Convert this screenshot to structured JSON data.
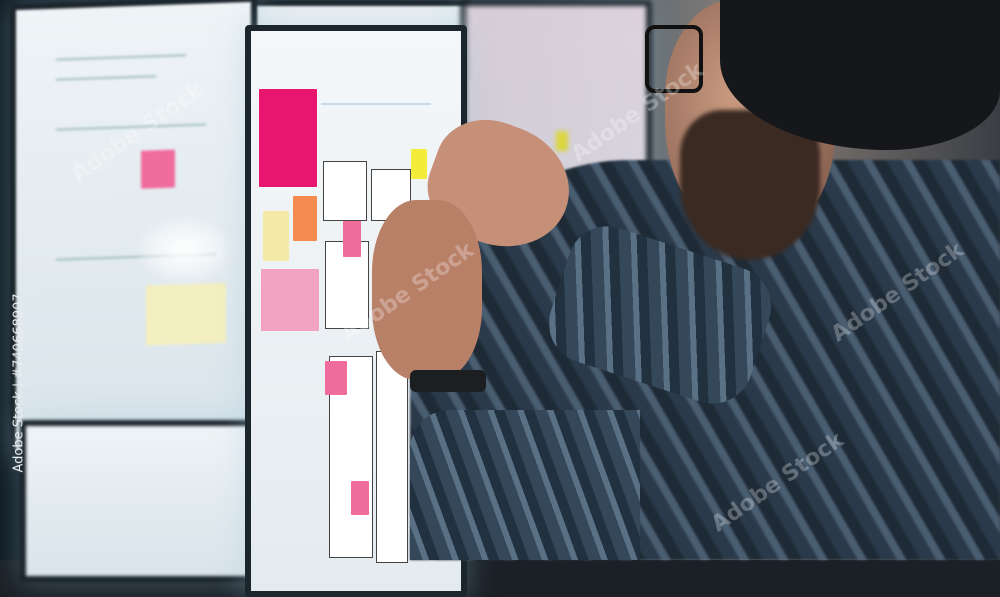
{
  "watermark": "Adobe Stock",
  "credit": "Adobe Stock | #740668907",
  "colors": {
    "pink_note": "#e8166e",
    "orange_note": "#f58a4f",
    "yellow_note": "#f4ec3a",
    "light_pink_note": "#f2a3c0",
    "shirt": "#34485a"
  }
}
